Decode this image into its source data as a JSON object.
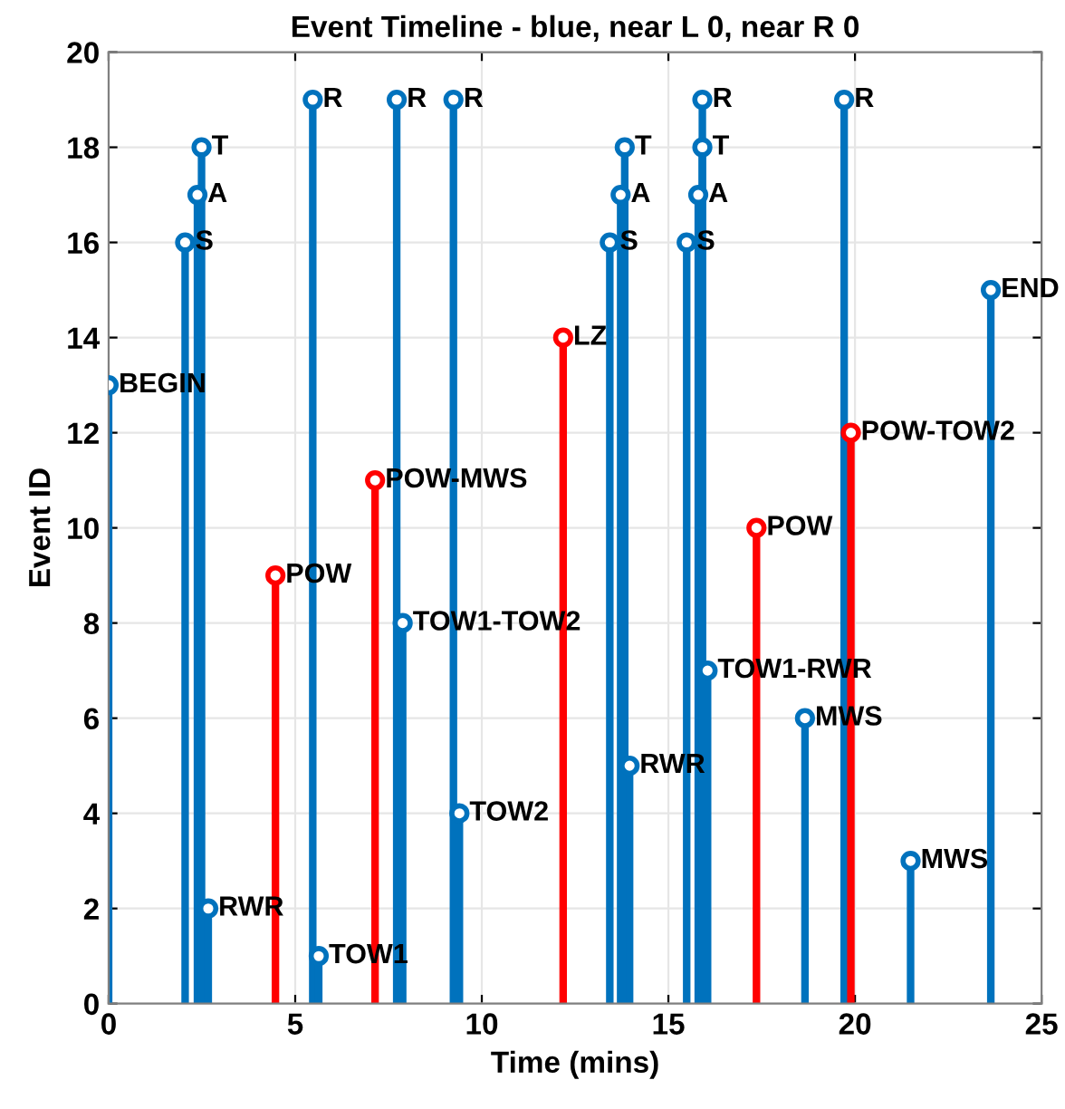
{
  "chart_data": {
    "type": "lollipop",
    "title": "Event Timeline - blue, near L 0, near R 0",
    "xlabel": "Time (mins)",
    "ylabel": "Event ID",
    "series": [
      {
        "color": "#0072bd",
        "x": [
          0,
          2.05,
          2.38,
          2.49,
          2.67,
          5.47,
          5.63,
          7.72,
          7.88,
          9.24,
          9.4,
          13.43,
          13.72,
          13.83,
          13.96,
          15.49,
          15.8,
          15.91,
          15.91,
          16.05,
          18.66,
          19.71,
          21.49,
          23.64
        ],
        "values": [
          13,
          16,
          17,
          18,
          2,
          19,
          1,
          19,
          8,
          19,
          4,
          16,
          17,
          18,
          5,
          16,
          17,
          18,
          19,
          7,
          6,
          19,
          3,
          15
        ]
      },
      {
        "color": "#ff0000",
        "x": [
          4.47,
          7.14,
          12.18,
          17.36,
          19.89
        ],
        "values": [
          9,
          11,
          14,
          10,
          12
        ]
      }
    ],
    "annotations": [
      {
        "text": "BEGIN",
        "x": 0,
        "y": 13
      },
      {
        "text": "S",
        "x": 2.05,
        "y": 16
      },
      {
        "text": "A",
        "x": 2.38,
        "y": 17
      },
      {
        "text": "T",
        "x": 2.49,
        "y": 18
      },
      {
        "text": "RWR",
        "x": 2.67,
        "y": 2
      },
      {
        "text": "POW",
        "x": 4.47,
        "y": 9
      },
      {
        "text": "R",
        "x": 5.47,
        "y": 19
      },
      {
        "text": "TOW1",
        "x": 5.63,
        "y": 1
      },
      {
        "text": "POW-MWS",
        "x": 7.14,
        "y": 11
      },
      {
        "text": "R",
        "x": 7.72,
        "y": 19
      },
      {
        "text": "TOW1-TOW2",
        "x": 7.88,
        "y": 8
      },
      {
        "text": "R",
        "x": 9.24,
        "y": 19
      },
      {
        "text": "TOW2",
        "x": 9.4,
        "y": 4
      },
      {
        "text": "LZ",
        "x": 12.18,
        "y": 14
      },
      {
        "text": "S",
        "x": 13.43,
        "y": 16
      },
      {
        "text": "A",
        "x": 13.72,
        "y": 17
      },
      {
        "text": "T",
        "x": 13.83,
        "y": 18
      },
      {
        "text": "RWR",
        "x": 13.96,
        "y": 5
      },
      {
        "text": "S",
        "x": 15.49,
        "y": 16
      },
      {
        "text": "A",
        "x": 15.8,
        "y": 17
      },
      {
        "text": "T",
        "x": 15.91,
        "y": 18
      },
      {
        "text": "R",
        "x": 15.91,
        "y": 19
      },
      {
        "text": "TOW1-RWR",
        "x": 16.05,
        "y": 7
      },
      {
        "text": "POW",
        "x": 17.36,
        "y": 10
      },
      {
        "text": "MWS",
        "x": 18.66,
        "y": 6
      },
      {
        "text": "R",
        "x": 19.71,
        "y": 19
      },
      {
        "text": "POW-TOW2",
        "x": 19.89,
        "y": 12
      },
      {
        "text": "MWS",
        "x": 21.49,
        "y": 3
      },
      {
        "text": "END",
        "x": 23.64,
        "y": 15
      }
    ],
    "xlim": [
      0,
      25
    ],
    "xticks": [
      0,
      5,
      10,
      15,
      20,
      25
    ],
    "ylim": [
      0,
      20
    ],
    "yticks": [
      0,
      2,
      4,
      6,
      8,
      10,
      12,
      14,
      16,
      18,
      20
    ],
    "grid": true,
    "marker": "circle",
    "legend": false
  }
}
